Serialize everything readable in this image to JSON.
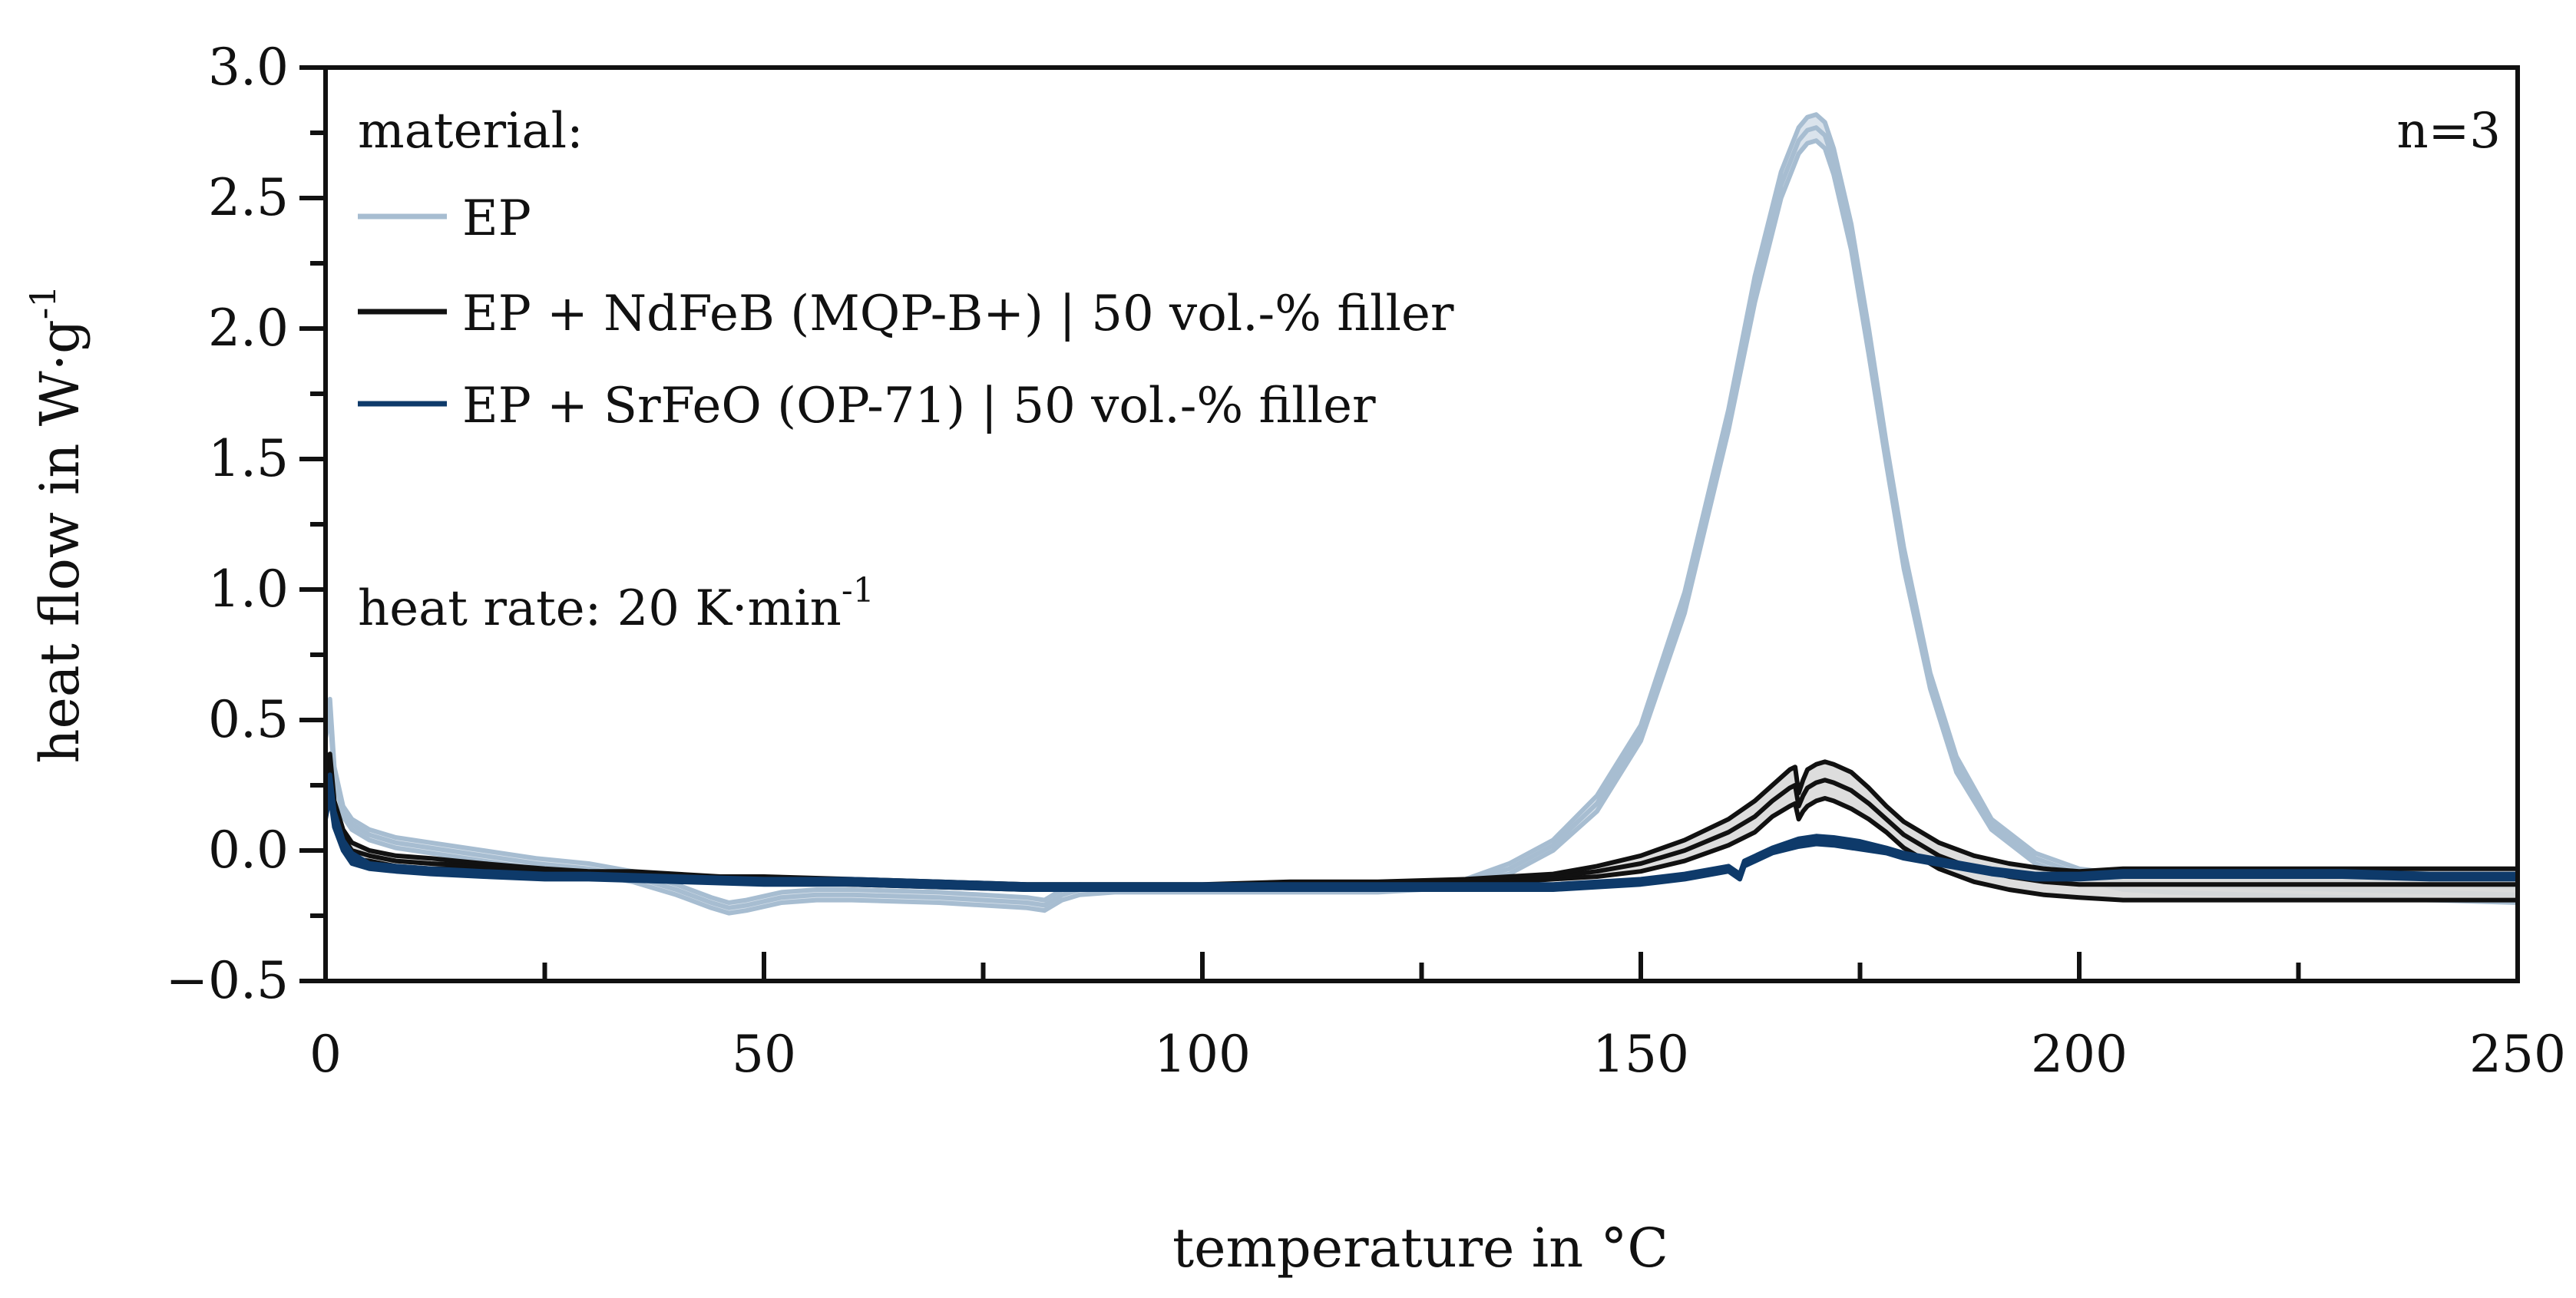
{
  "chart_data": {
    "type": "line",
    "title": "",
    "xlabel": "temperature in °C",
    "ylabel_main": "heat flow in W·g",
    "ylabel_sup": "-1",
    "xlim": [
      0,
      250
    ],
    "ylim": [
      -0.5,
      3.0
    ],
    "x_major_ticks": [
      0,
      50,
      100,
      150,
      200,
      250
    ],
    "x_tick_labels": [
      "0",
      "50",
      "100",
      "150",
      "200",
      "250"
    ],
    "x_minor_ticks": [
      25,
      75,
      125,
      175,
      225
    ],
    "y_major_ticks": [
      -0.5,
      0.0,
      0.5,
      1.0,
      1.5,
      2.0,
      2.5,
      3.0
    ],
    "y_tick_labels": [
      "−0.5",
      "0.0",
      "0.5",
      "1.0",
      "1.5",
      "2.0",
      "2.5",
      "3.0"
    ],
    "y_minor_ticks": [
      -0.25,
      0.25,
      0.75,
      1.25,
      1.75,
      2.25,
      2.75
    ],
    "grid": false,
    "legend_title": "material:",
    "legend_placement": "top-left",
    "annotation_n": "n=3",
    "annotation_heat_rate_main": "heat rate: 20 K·min",
    "annotation_heat_rate_sup": "-1",
    "series": [
      {
        "name": "EP",
        "color": "#a7bdd1",
        "band_color": "#d6e0ea",
        "replicates": 3,
        "x": [
          0,
          0.5,
          1,
          2,
          3,
          5,
          8,
          12,
          18,
          24,
          30,
          35,
          40,
          44,
          46,
          48,
          52,
          56,
          60,
          70,
          80,
          82,
          84,
          86,
          90,
          100,
          110,
          120,
          125,
          130,
          135,
          140,
          145,
          150,
          155,
          160,
          163,
          166,
          168,
          169,
          170,
          171,
          172,
          174,
          176,
          178,
          180,
          183,
          186,
          190,
          195,
          200,
          205,
          210,
          220,
          230,
          240,
          250
        ],
        "values": [
          0.45,
          0.55,
          0.3,
          0.15,
          0.1,
          0.06,
          0.03,
          0.01,
          -0.02,
          -0.05,
          -0.07,
          -0.1,
          -0.15,
          -0.2,
          -0.22,
          -0.21,
          -0.18,
          -0.17,
          -0.17,
          -0.18,
          -0.2,
          -0.21,
          -0.17,
          -0.15,
          -0.15,
          -0.15,
          -0.15,
          -0.15,
          -0.14,
          -0.12,
          -0.07,
          0.02,
          0.18,
          0.45,
          0.95,
          1.65,
          2.15,
          2.55,
          2.72,
          2.76,
          2.77,
          2.74,
          2.64,
          2.35,
          1.95,
          1.52,
          1.12,
          0.65,
          0.33,
          0.1,
          -0.03,
          -0.09,
          -0.12,
          -0.13,
          -0.14,
          -0.15,
          -0.16,
          -0.17
        ],
        "spread": [
          0.02,
          0.03,
          0.02,
          0.02,
          0.02,
          0.02,
          0.02,
          0.02,
          0.02,
          0.02,
          0.02,
          0.02,
          0.02,
          0.02,
          0.02,
          0.02,
          0.02,
          0.02,
          0.02,
          0.02,
          0.02,
          0.02,
          0.02,
          0.02,
          0.01,
          0.01,
          0.01,
          0.01,
          0.01,
          0.01,
          0.02,
          0.02,
          0.03,
          0.03,
          0.04,
          0.04,
          0.05,
          0.05,
          0.05,
          0.05,
          0.05,
          0.05,
          0.05,
          0.05,
          0.05,
          0.04,
          0.04,
          0.03,
          0.03,
          0.02,
          0.02,
          0.02,
          0.03,
          0.03,
          0.03,
          0.03,
          0.03,
          0.03
        ]
      },
      {
        "name": "EP + NdFeB (MQP-B+) | 50 vol.-% filler",
        "color": "#111111",
        "band_color": "#d9d9d9",
        "replicates": 3,
        "x": [
          0,
          0.5,
          1,
          2,
          3,
          5,
          8,
          12,
          18,
          25,
          30,
          35,
          40,
          45,
          50,
          60,
          70,
          80,
          90,
          100,
          110,
          120,
          130,
          140,
          145,
          150,
          155,
          160,
          163,
          165,
          167,
          167.6,
          168,
          168.5,
          169,
          170,
          171,
          172,
          174,
          176,
          178,
          180,
          184,
          188,
          192,
          196,
          200,
          205,
          210,
          220,
          230,
          240,
          250
        ],
        "values": [
          0.22,
          0.32,
          0.15,
          0.05,
          0.0,
          -0.02,
          -0.04,
          -0.05,
          -0.06,
          -0.08,
          -0.09,
          -0.09,
          -0.1,
          -0.11,
          -0.11,
          -0.12,
          -0.13,
          -0.14,
          -0.14,
          -0.14,
          -0.13,
          -0.13,
          -0.12,
          -0.1,
          -0.08,
          -0.05,
          0.0,
          0.07,
          0.13,
          0.19,
          0.24,
          0.25,
          0.17,
          0.21,
          0.24,
          0.26,
          0.27,
          0.26,
          0.23,
          0.18,
          0.12,
          0.06,
          -0.02,
          -0.07,
          -0.1,
          -0.12,
          -0.13,
          -0.13,
          -0.13,
          -0.13,
          -0.13,
          -0.13,
          -0.13
        ],
        "spread": [
          0.04,
          0.05,
          0.04,
          0.03,
          0.03,
          0.02,
          0.02,
          0.02,
          0.01,
          0.01,
          0.01,
          0.01,
          0.01,
          0.01,
          0.01,
          0.01,
          0.01,
          0.01,
          0.01,
          0.01,
          0.01,
          0.01,
          0.01,
          0.01,
          0.02,
          0.03,
          0.04,
          0.05,
          0.06,
          0.06,
          0.07,
          0.07,
          0.05,
          0.06,
          0.07,
          0.07,
          0.07,
          0.07,
          0.07,
          0.06,
          0.05,
          0.05,
          0.05,
          0.05,
          0.05,
          0.05,
          0.05,
          0.06,
          0.06,
          0.06,
          0.06,
          0.06,
          0.06
        ]
      },
      {
        "name": "EP + SrFeO (OP-71) | 50 vol.-% filler",
        "color": "#0e3a6a",
        "band_color": "#5b7c9f",
        "replicates": 3,
        "x": [
          0,
          0.5,
          1,
          2,
          3,
          5,
          8,
          12,
          18,
          25,
          30,
          40,
          50,
          60,
          70,
          80,
          90,
          100,
          110,
          120,
          130,
          140,
          150,
          155,
          160,
          161.3,
          161.8,
          165,
          168,
          170,
          172,
          175,
          178,
          180,
          185,
          190,
          195,
          200,
          205,
          210,
          220,
          230,
          240,
          250
        ],
        "values": [
          0.15,
          0.25,
          0.12,
          0.02,
          -0.03,
          -0.06,
          -0.07,
          -0.08,
          -0.09,
          -0.1,
          -0.1,
          -0.11,
          -0.12,
          -0.12,
          -0.13,
          -0.14,
          -0.14,
          -0.14,
          -0.14,
          -0.14,
          -0.14,
          -0.14,
          -0.12,
          -0.1,
          -0.07,
          -0.1,
          -0.05,
          0.0,
          0.03,
          0.04,
          0.035,
          0.02,
          0.0,
          -0.02,
          -0.05,
          -0.08,
          -0.1,
          -0.1,
          -0.09,
          -0.09,
          -0.09,
          -0.09,
          -0.1,
          -0.1
        ],
        "spread": [
          0.03,
          0.04,
          0.03,
          0.02,
          0.02,
          0.01,
          0.01,
          0.01,
          0.01,
          0.01,
          0.01,
          0.01,
          0.01,
          0.01,
          0.01,
          0.01,
          0.01,
          0.01,
          0.01,
          0.01,
          0.01,
          0.01,
          0.01,
          0.01,
          0.01,
          0.01,
          0.01,
          0.01,
          0.015,
          0.015,
          0.015,
          0.015,
          0.01,
          0.01,
          0.01,
          0.01,
          0.01,
          0.01,
          0.01,
          0.01,
          0.01,
          0.01,
          0.01,
          0.01
        ]
      }
    ]
  }
}
